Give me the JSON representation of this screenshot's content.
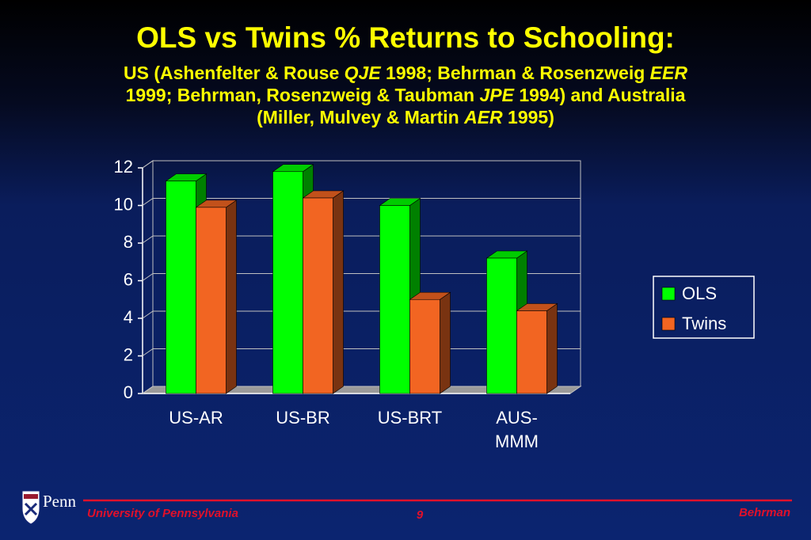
{
  "chart_data": {
    "type": "bar3d",
    "title": "OLS vs Twins % Returns to Schooling:",
    "subtitle": [
      [
        {
          "text": "US (Ashenfelter & Rouse ",
          "italic": false
        },
        {
          "text": "QJE",
          "italic": true
        },
        {
          "text": " 1998; Behrman & Rosenzweig ",
          "italic": false
        },
        {
          "text": "EER",
          "italic": true
        }
      ],
      [
        {
          "text": "1999; Behrman, Rosenzweig & Taubman ",
          "italic": false
        },
        {
          "text": "JPE",
          "italic": true
        },
        {
          "text": " 1994) and Australia",
          "italic": false
        }
      ],
      [
        {
          "text": "(Miller, Mulvey & Martin ",
          "italic": false
        },
        {
          "text": "AER",
          "italic": true
        },
        {
          "text": " 1995)",
          "italic": false
        }
      ]
    ],
    "categories": [
      "US-AR",
      "US-BR",
      "US-BRT",
      "AUS-MMM"
    ],
    "series": [
      {
        "name": "OLS",
        "color": "#00ff00",
        "values": [
          11.3,
          11.8,
          10.0,
          7.2
        ]
      },
      {
        "name": "Twins",
        "color": "#f26522",
        "values": [
          9.9,
          10.4,
          5.0,
          4.4
        ]
      }
    ],
    "ylim": [
      0,
      12
    ],
    "yticks": [
      0,
      2,
      4,
      6,
      8,
      10,
      12
    ],
    "grid": true,
    "legend": "right"
  },
  "footer": {
    "logo": "Penn",
    "left": "University of Pennsylvania",
    "page": "9",
    "right": "Behrman"
  }
}
